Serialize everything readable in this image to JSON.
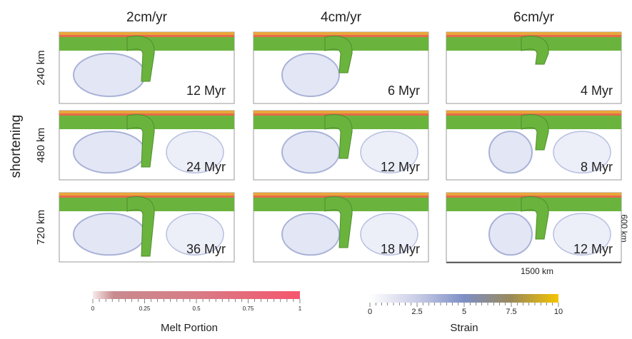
{
  "columns": [
    "2cm/yr",
    "4cm/yr",
    "6cm/yr"
  ],
  "row_axis_label": "shortening",
  "rows": [
    {
      "label": "240 km",
      "times": [
        "12 Myr",
        "6 Myr",
        "4 Myr"
      ]
    },
    {
      "label": "480 km",
      "times": [
        "24 Myr",
        "12 Myr",
        "8 Myr"
      ]
    },
    {
      "label": "720 km",
      "times": [
        "36 Myr",
        "18 Myr",
        "12 Myr"
      ]
    }
  ],
  "scale": {
    "vertical": "600 km",
    "horizontal": "1500 km"
  },
  "colorbars": [
    {
      "title": "Melt Portion",
      "ticks": [
        "0",
        "0.25",
        "0.5",
        "0.75",
        "1"
      ]
    },
    {
      "title": "Strain",
      "ticks": [
        "0",
        "2.5",
        "5",
        "7.5",
        "10"
      ]
    }
  ]
}
